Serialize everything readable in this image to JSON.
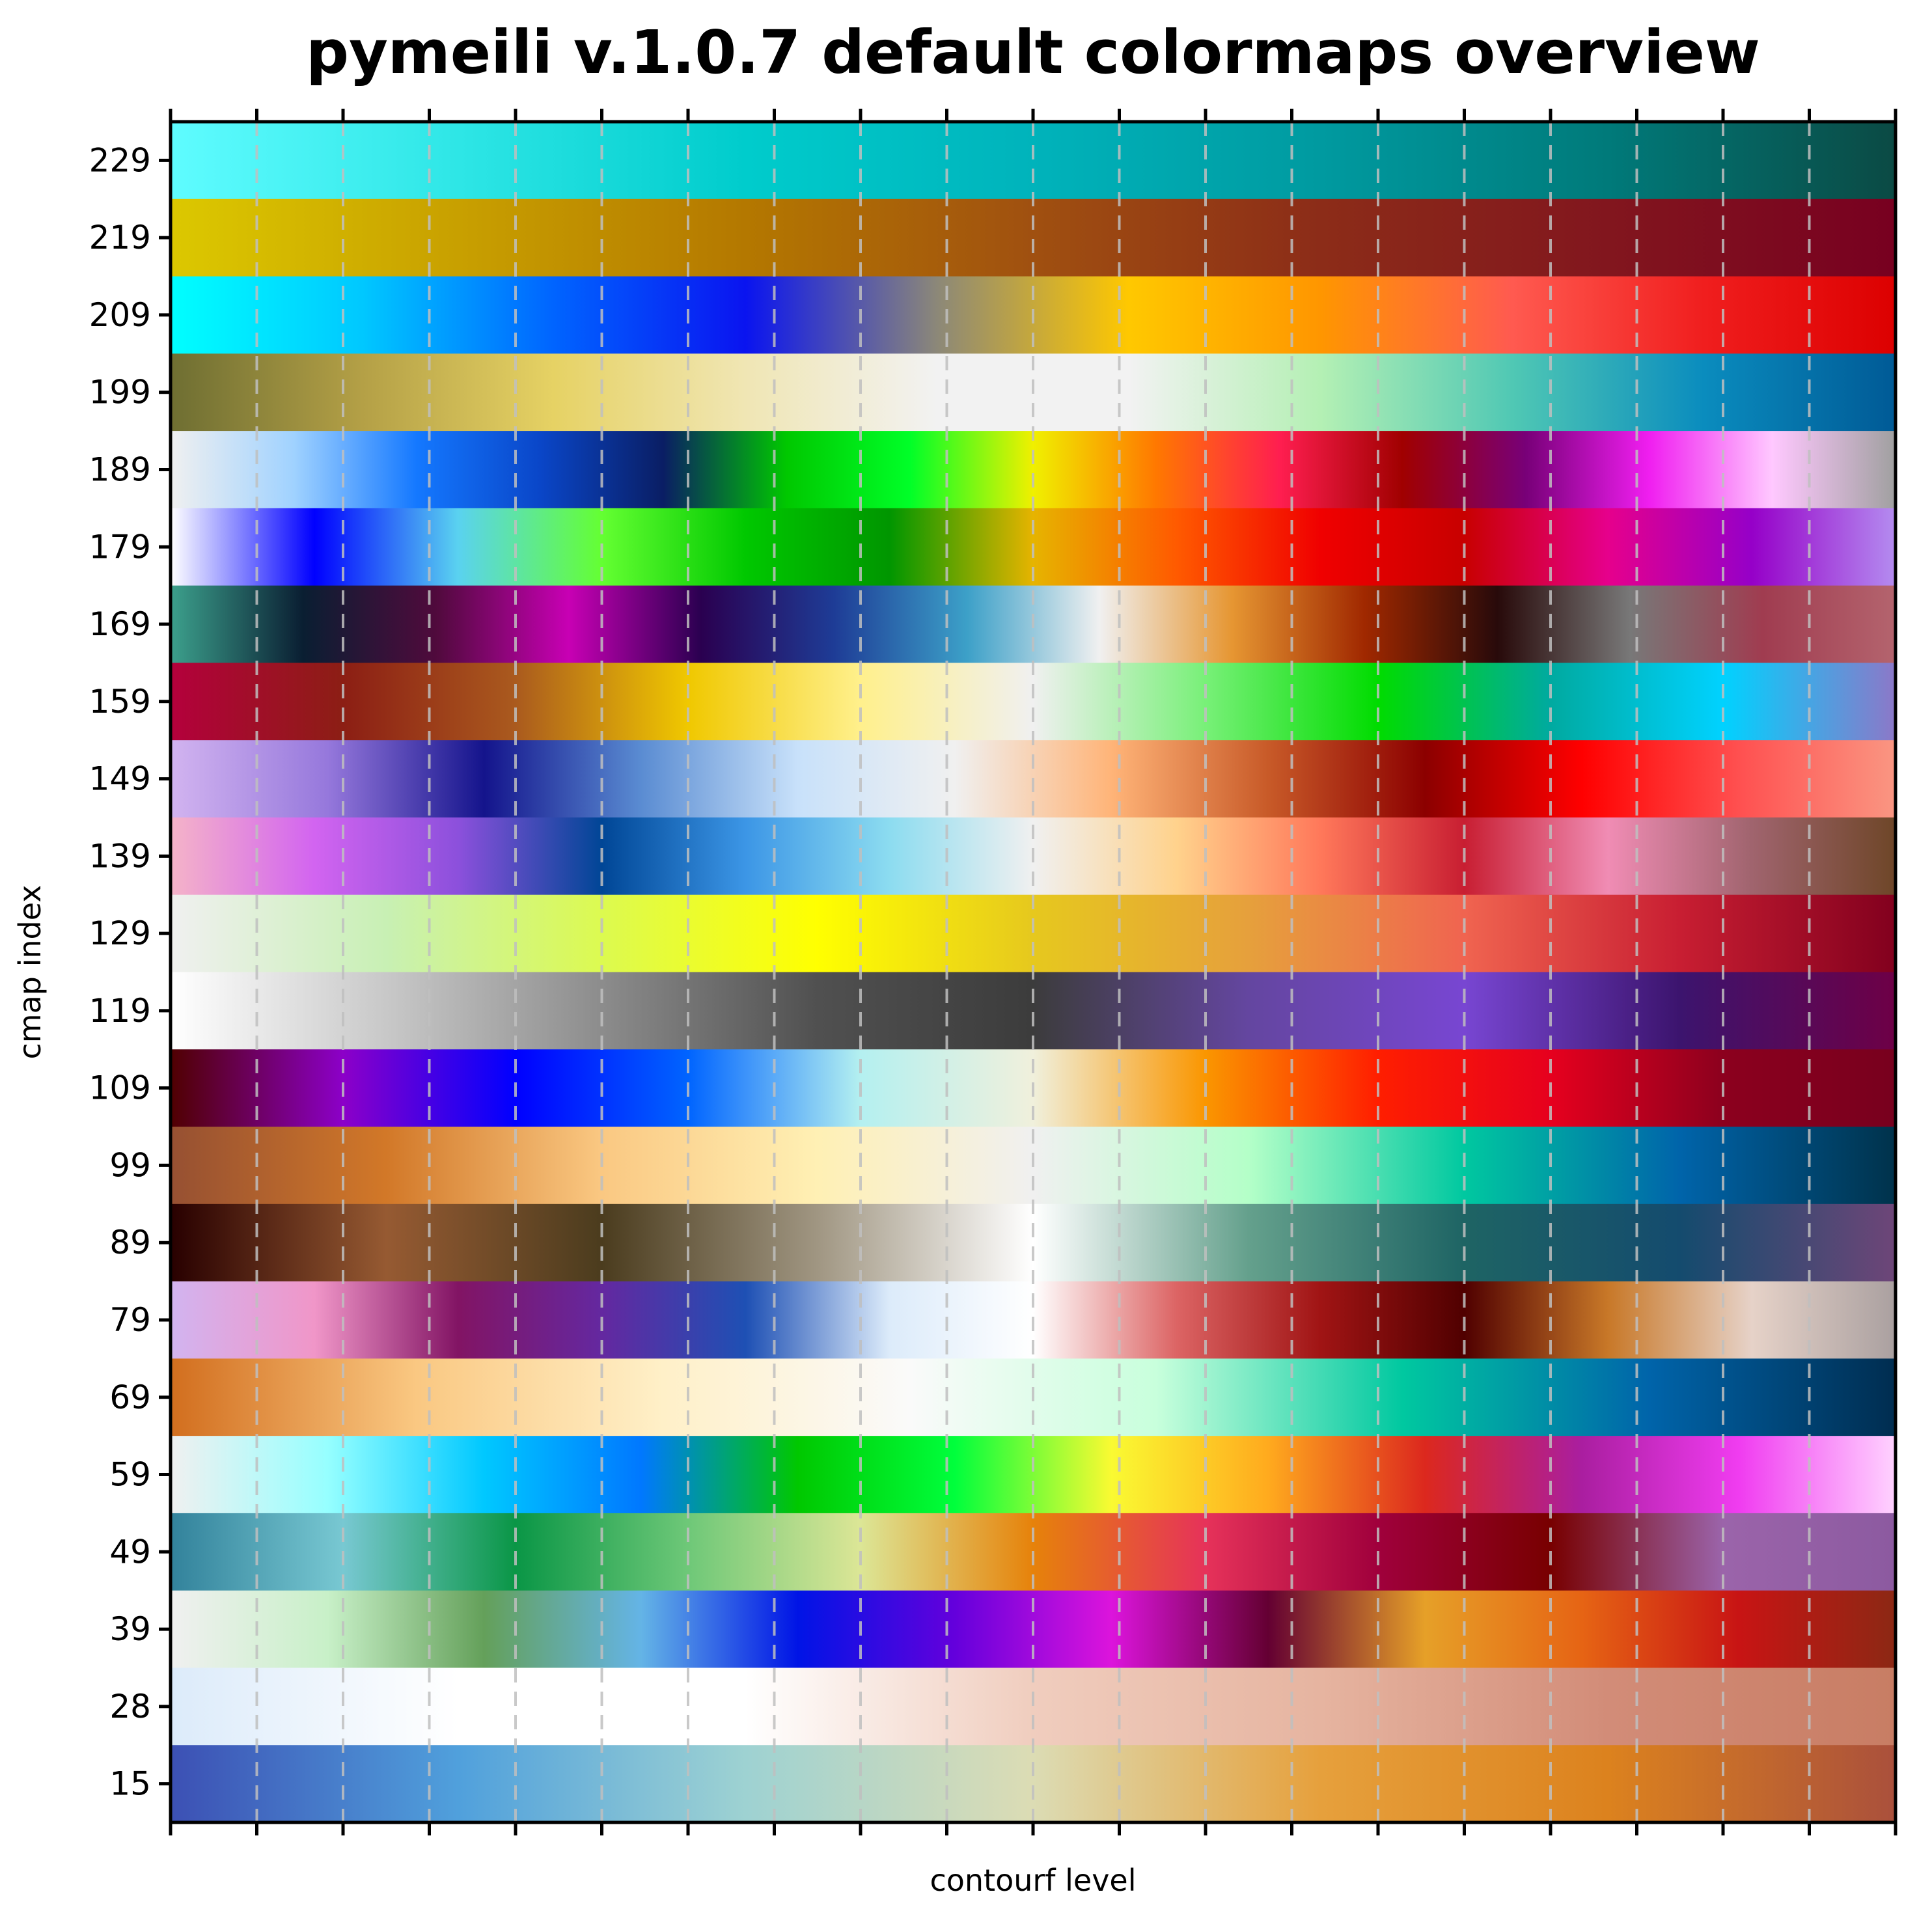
{
  "chart_data": {
    "type": "heatmap",
    "title": "pymeili v.1.0.7 default colormaps overview",
    "xlabel": "contourf level",
    "ylabel": "cmap index",
    "x_tick_count": 21,
    "x_tick_labels_shown": false,
    "grid": {
      "x": true,
      "style": "dashed",
      "color": "#c0c0c0"
    },
    "rows": [
      {
        "label": "229",
        "colors": [
          "#5ffcff",
          "#2ee6e6",
          "#00cccc",
          "#00b3bb",
          "#009aa0",
          "#007a7a",
          "#0b4a44"
        ]
      },
      {
        "label": "219",
        "colors": [
          "#dcc800",
          "#c8a000",
          "#b47800",
          "#a05010",
          "#8c2c18",
          "#82161e",
          "#780020"
        ]
      },
      {
        "label": "209",
        "colors": [
          "#00ffff",
          "#00c8ff",
          "#0064ff",
          "#0a14f0",
          "#8c8878",
          "#ffc800",
          "#ff9600",
          "#ff5a50",
          "#f01e1e",
          "#dc0000"
        ]
      },
      {
        "label": "199",
        "colors": [
          "#6e6e32",
          "#b4a046",
          "#e6d264",
          "#f0e6b4",
          "#f2f2f2",
          "#f2f2f2",
          "#b4f0b4",
          "#50c8b4",
          "#0a8cbe",
          "#005a96"
        ]
      },
      {
        "label": "189",
        "colors": [
          "#f0f0f0",
          "#a0d2ff",
          "#1478ff",
          "#0a46c8",
          "#0a1e64",
          "#00c800",
          "#00ff28",
          "#f0f000",
          "#ff7800",
          "#ff1e50",
          "#a00000",
          "#780078",
          "#f01ef0",
          "#ffc8ff",
          "#a0a0a0"
        ]
      },
      {
        "label": "179",
        "colors": [
          "#ffffff",
          "#0000ff",
          "#5ad2f0",
          "#64ff32",
          "#00c800",
          "#009600",
          "#e6b400",
          "#ff5a00",
          "#f00000",
          "#c80000",
          "#e6008c",
          "#9600c8",
          "#b48cf0"
        ]
      },
      {
        "label": "169",
        "colors": [
          "#3ca08c",
          "#0a1e32",
          "#500a3c",
          "#c800b4",
          "#2a0050",
          "#1e3c96",
          "#3ca0c8",
          "#f0f0f0",
          "#e69632",
          "#a02800",
          "#280a0a",
          "#787878",
          "#a03c50",
          "#b4646e"
        ]
      },
      {
        "label": "159",
        "colors": [
          "#b4003c",
          "#8c1e14",
          "#aa5a1e",
          "#f0c800",
          "#fff08c",
          "#f0f0f0",
          "#78f078",
          "#00dc00",
          "#00aaa0",
          "#00d2ff",
          "#8c78c8"
        ]
      },
      {
        "label": "149",
        "colors": [
          "#d2b4f0",
          "#9678dc",
          "#14148c",
          "#5a8cd2",
          "#c8e1fa",
          "#f0f0f0",
          "#ffb478",
          "#c85a28",
          "#8c0000",
          "#ff0000",
          "#ff5050",
          "#fa9682"
        ]
      },
      {
        "label": "139",
        "colors": [
          "#f5b4c8",
          "#d264f0",
          "#8c50dc",
          "#004696",
          "#3c96e6",
          "#8cdcf0",
          "#f0f0f0",
          "#ffd28c",
          "#ff785a",
          "#c81e32",
          "#f08cb4",
          "#a0646e",
          "#6e4628"
        ]
      },
      {
        "label": "129",
        "colors": [
          "#f0f0f0",
          "#c8f0b4",
          "#dcfa50",
          "#ffff00",
          "#e6c81e",
          "#e6a03c",
          "#f06450",
          "#c81e32",
          "#82001e"
        ]
      },
      {
        "label": "119",
        "colors": [
          "#ffffff",
          "#c8c8c8",
          "#8c8c8c",
          "#505050",
          "#3c3c3c",
          "#6446a0",
          "#7846d2",
          "#3c146e",
          "#6e0046"
        ]
      },
      {
        "label": "109",
        "colors": [
          "#500000",
          "#8c00c8",
          "#0000ff",
          "#0064ff",
          "#b4f0f0",
          "#f0f0dc",
          "#fa9600",
          "#ff1e00",
          "#e6001e",
          "#8c001e",
          "#78001e"
        ]
      },
      {
        "label": "99",
        "colors": [
          "#965032",
          "#d27828",
          "#fac882",
          "#fff0b4",
          "#f0f0f0",
          "#b4ffc8",
          "#00c8a0",
          "#0064aa",
          "#00324b"
        ]
      },
      {
        "label": "89",
        "colors": [
          "#280000",
          "#965a32",
          "#4b3c1e",
          "#a09682",
          "#ffffff",
          "#64a08c",
          "#1e6464",
          "#144b6e",
          "#6e4678"
        ]
      },
      {
        "label": "79",
        "colors": [
          "#d2b4f0",
          "#f096c8",
          "#821464",
          "#6428a0",
          "#1e50b4",
          "#dcebfa",
          "#ffffff",
          "#dc6464",
          "#a01414",
          "#500000",
          "#c87828",
          "#e6d2c8",
          "#aaa0a0"
        ]
      },
      {
        "label": "69",
        "colors": [
          "#d26e1e",
          "#fac882",
          "#fff0c8",
          "#fafafa",
          "#c8ffdc",
          "#00c8a0",
          "#0064aa",
          "#002d50"
        ]
      },
      {
        "label": "59",
        "colors": [
          "#f0f0f0",
          "#96ffff",
          "#00c8ff",
          "#0078ff",
          "#00c800",
          "#00ff3c",
          "#fafa32",
          "#ffaa1e",
          "#dc281e",
          "#aa1ea0",
          "#f03cf0",
          "#ffd2ff"
        ]
      },
      {
        "label": "49",
        "colors": [
          "#32829b",
          "#78c8d2",
          "#0a9646",
          "#6ec878",
          "#dce696",
          "#e6820a",
          "#e6325a",
          "#a0003c",
          "#780000",
          "#9b64aa",
          "#8c5aa0"
        ]
      },
      {
        "label": "39",
        "colors": [
          "#f0f0f0",
          "#c8f0c8",
          "#64a05a",
          "#64b4e6",
          "#0014e6",
          "#6400dc",
          "#dc14dc",
          "#640032",
          "#e6a028",
          "#e66414",
          "#c81414",
          "#8c2814"
        ]
      },
      {
        "label": "28",
        "colors": [
          "#dcebfa",
          "#ffffff",
          "#ffffff",
          "#f0cdbe",
          "#e6b4a0",
          "#d28c78",
          "#c87d64"
        ]
      },
      {
        "label": "15",
        "colors": [
          "#3c50b4",
          "#50a0dc",
          "#9ed2d2",
          "#dcdcb4",
          "#e6a03c",
          "#dc821e",
          "#aa503c"
        ]
      }
    ]
  }
}
